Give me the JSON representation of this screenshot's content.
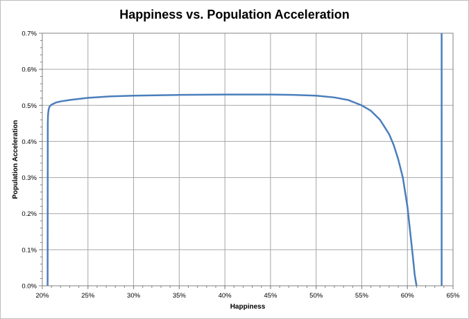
{
  "chart_data": {
    "type": "line",
    "title": "Happiness vs. Population Acceleration",
    "xlabel": "Happiness",
    "ylabel": "Population Acceleration",
    "xlim": [
      0.2,
      0.65
    ],
    "ylim": [
      0.0,
      0.007
    ],
    "x_ticks": [
      0.2,
      0.25,
      0.3,
      0.35,
      0.4,
      0.45,
      0.5,
      0.55,
      0.6,
      0.65
    ],
    "x_tick_labels": [
      "20%",
      "25%",
      "30%",
      "35%",
      "40%",
      "45%",
      "50%",
      "55%",
      "60%",
      "65%"
    ],
    "y_ticks": [
      0.0,
      0.001,
      0.002,
      0.003,
      0.004,
      0.005,
      0.006,
      0.007
    ],
    "y_tick_labels": [
      "0.0%",
      "0.1%",
      "0.2%",
      "0.3%",
      "0.4%",
      "0.5%",
      "0.6%",
      "0.7%"
    ],
    "grid": true,
    "legend": "none",
    "series_color": "#4a7ebb",
    "series": [
      {
        "x": [
          0.2058,
          0.206,
          0.2062,
          0.2065,
          0.207,
          0.208,
          0.21,
          0.215,
          0.22,
          0.23,
          0.25,
          0.275,
          0.3,
          0.35,
          0.4,
          0.45,
          0.475,
          0.5,
          0.52,
          0.535,
          0.55,
          0.56,
          0.57,
          0.575,
          0.58,
          0.585,
          0.59,
          0.595,
          0.6,
          0.603,
          0.606,
          0.608,
          0.61
        ],
        "y": [
          0.0,
          0.0045,
          0.0047,
          0.0048,
          0.0049,
          0.00497,
          0.00502,
          0.00508,
          0.00511,
          0.00515,
          0.00521,
          0.00525,
          0.00527,
          0.00529,
          0.0053,
          0.0053,
          0.00529,
          0.00527,
          0.00522,
          0.00515,
          0.005,
          0.00485,
          0.0046,
          0.0044,
          0.0042,
          0.0039,
          0.0035,
          0.003,
          0.0022,
          0.0015,
          0.0008,
          0.0003,
          0.0
        ]
      },
      {
        "x": [
          0.6375,
          0.6375
        ],
        "y": [
          0.0,
          0.007
        ]
      }
    ]
  }
}
